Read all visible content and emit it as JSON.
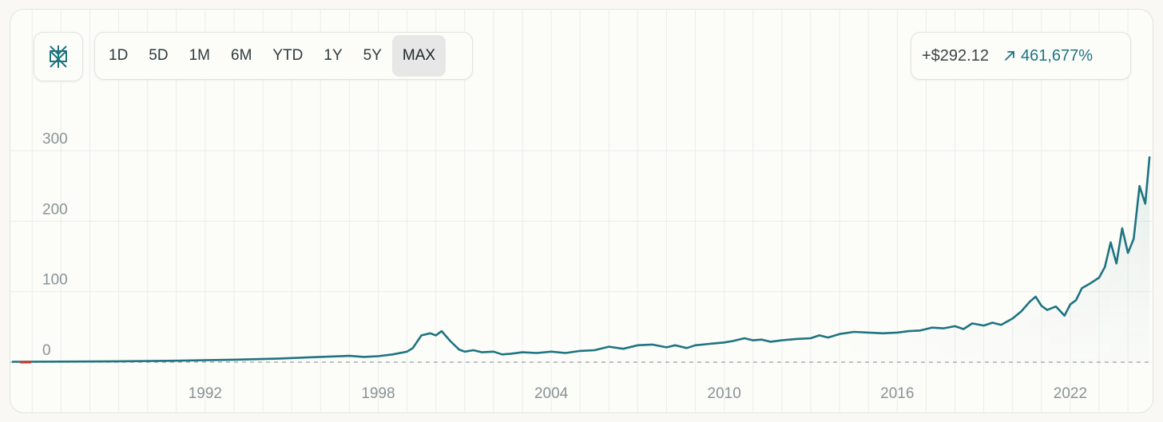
{
  "toolbar": {
    "logo_icon": "perplexity-logo-icon",
    "ranges": [
      "1D",
      "5D",
      "1M",
      "6M",
      "YTD",
      "1Y",
      "5Y",
      "MAX"
    ],
    "active_range": "MAX"
  },
  "stats": {
    "change_abs": "+$292.12",
    "change_pct": "461,677%",
    "direction_icon": "arrow-up-right-icon"
  },
  "colors": {
    "line": "#1e7480",
    "baseline_marker": "#c0392b",
    "axis_text": "#8a9396",
    "grid": "#ecedea"
  },
  "chart_data": {
    "type": "line",
    "title": "",
    "xlabel": "",
    "ylabel": "",
    "y_ticks": [
      0,
      100,
      200,
      300
    ],
    "y_tick_labels": [
      "0",
      "100",
      "200",
      "300"
    ],
    "x_ticks": [
      1992,
      1998,
      2004,
      2010,
      2016,
      2022
    ],
    "x_tick_labels": [
      "1992",
      "1998",
      "2004",
      "2010",
      "2016",
      "2022"
    ],
    "xlim": [
      1985.3,
      2024.8
    ],
    "ylim": [
      0,
      300
    ],
    "grid": true,
    "baseline": 0,
    "series": [
      {
        "x": [
          1985.3,
          1987.0,
          1989.0,
          1991.0,
          1993.0,
          1994.5,
          1996.0,
          1997.0,
          1997.5,
          1998.0,
          1998.5,
          1999.0,
          1999.2,
          1999.5,
          1999.8,
          2000.0,
          2000.2,
          2000.5,
          2000.8,
          2001.0,
          2001.3,
          2001.6,
          2002.0,
          2002.3,
          2002.6,
          2003.0,
          2003.5,
          2004.0,
          2004.5,
          2005.0,
          2005.5,
          2006.0,
          2006.5,
          2007.0,
          2007.5,
          2008.0,
          2008.3,
          2008.7,
          2009.0,
          2009.5,
          2010.0,
          2010.3,
          2010.7,
          2011.0,
          2011.3,
          2011.6,
          2012.0,
          2012.5,
          2013.0,
          2013.3,
          2013.6,
          2014.0,
          2014.5,
          2015.0,
          2015.5,
          2016.0,
          2016.4,
          2016.8,
          2017.2,
          2017.6,
          2018.0,
          2018.3,
          2018.6,
          2019.0,
          2019.3,
          2019.6,
          2020.0,
          2020.3,
          2020.6,
          2020.8,
          2021.0,
          2021.2,
          2021.5,
          2021.8,
          2022.0,
          2022.2,
          2022.4,
          2022.7,
          2023.0,
          2023.2,
          2023.4,
          2023.6,
          2023.8,
          2024.0,
          2024.2,
          2024.4,
          2024.6,
          2024.75
        ],
        "values": [
          0.6,
          0.8,
          1.2,
          2.0,
          3.5,
          5.0,
          7.5,
          9.0,
          7.5,
          8.5,
          11.0,
          15.0,
          20.0,
          38.0,
          41.0,
          38.0,
          44.0,
          30.0,
          18.0,
          15.0,
          17.0,
          14.0,
          15.0,
          11.0,
          12.0,
          14.0,
          13.0,
          15.0,
          13.0,
          16.0,
          17.0,
          22.0,
          19.0,
          24.0,
          25.0,
          21.0,
          24.0,
          20.0,
          24.0,
          26.0,
          28.0,
          30.0,
          34.0,
          31.0,
          32.0,
          29.0,
          31.0,
          33.0,
          34.0,
          38.0,
          35.0,
          40.0,
          43.0,
          42.0,
          41.0,
          42.0,
          44.0,
          45.0,
          49.0,
          48.0,
          51.0,
          47.0,
          55.0,
          52.0,
          56.0,
          53.0,
          62.0,
          72.0,
          86.0,
          93.0,
          80.0,
          74.0,
          79.0,
          66.0,
          82.0,
          88.0,
          105.0,
          112.0,
          120.0,
          135.0,
          170.0,
          140.0,
          190.0,
          155.0,
          175.0,
          250.0,
          225.0,
          292.0
        ]
      }
    ]
  }
}
